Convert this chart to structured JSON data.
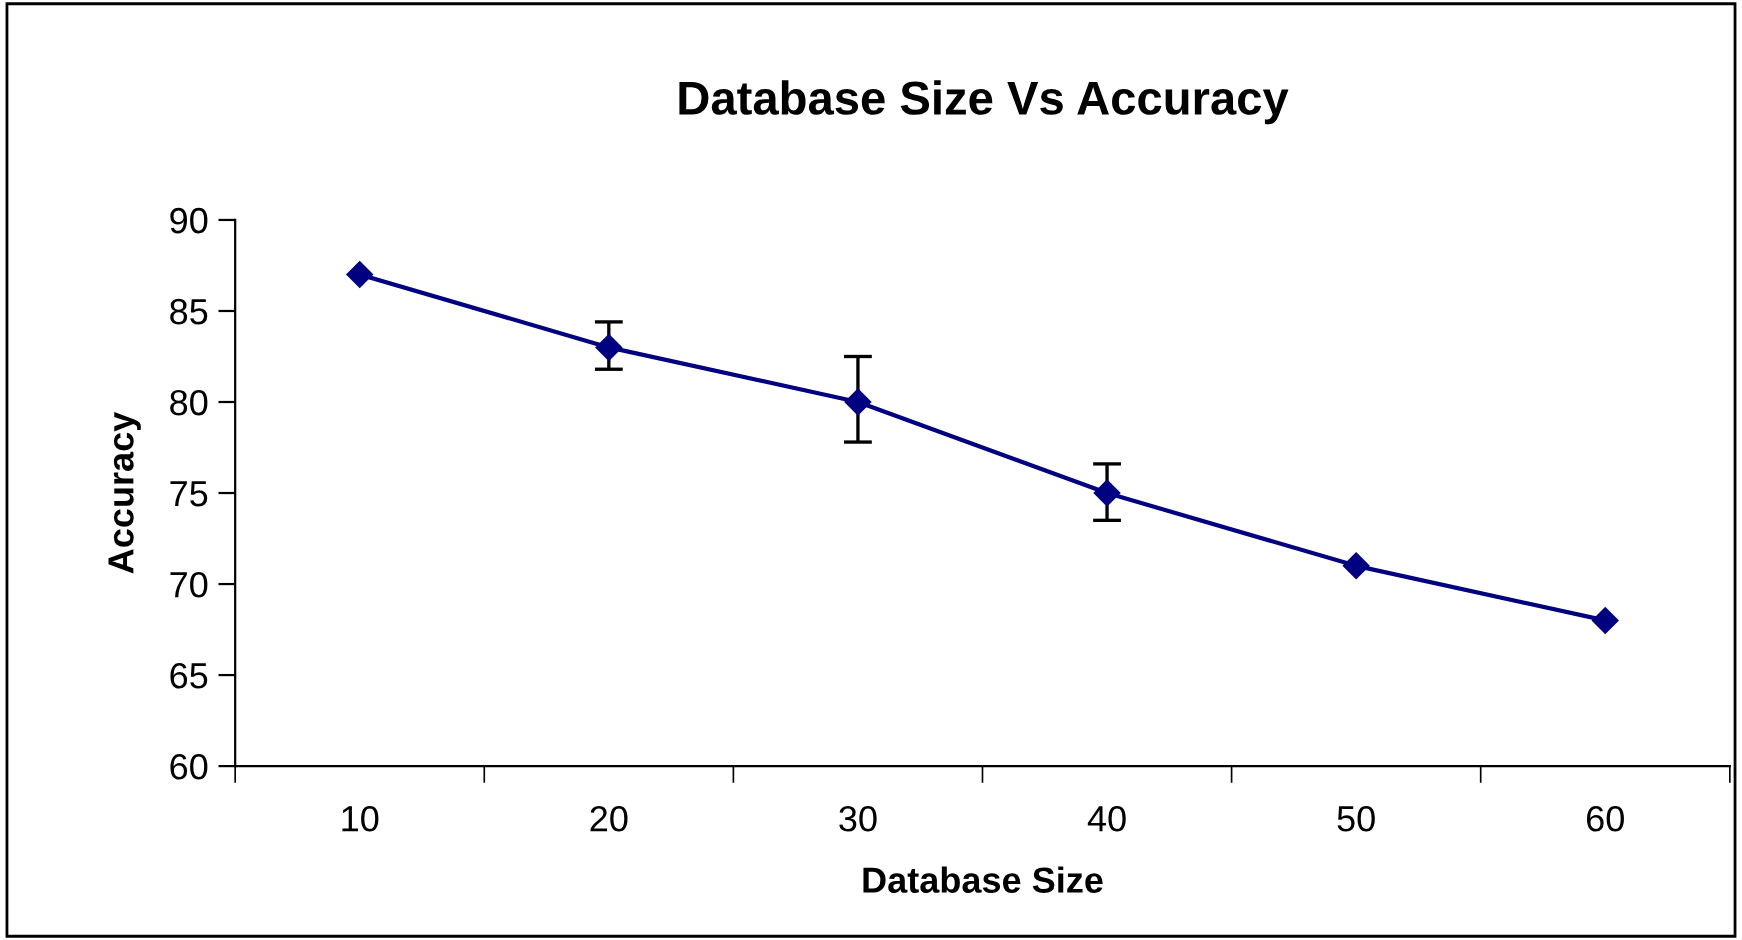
{
  "chart_data": {
    "type": "line",
    "title": "Database Size Vs Accuracy",
    "xlabel": "Database Size",
    "ylabel": "Accuracy",
    "categories": [
      "10",
      "20",
      "30",
      "40",
      "50",
      "60"
    ],
    "series": [
      {
        "color": "#000080",
        "values": [
          87,
          83,
          80,
          75,
          71,
          68
        ],
        "errors": [
          null,
          [
            81.8,
            84.4
          ],
          [
            77.8,
            82.5
          ],
          [
            73.5,
            76.6
          ],
          null,
          null
        ]
      }
    ],
    "ylim": [
      60,
      90
    ],
    "yticks": [
      60,
      65,
      70,
      75,
      80,
      85,
      90
    ],
    "grid": false,
    "legend": false,
    "marker": "diamond",
    "line_style": "solid"
  }
}
